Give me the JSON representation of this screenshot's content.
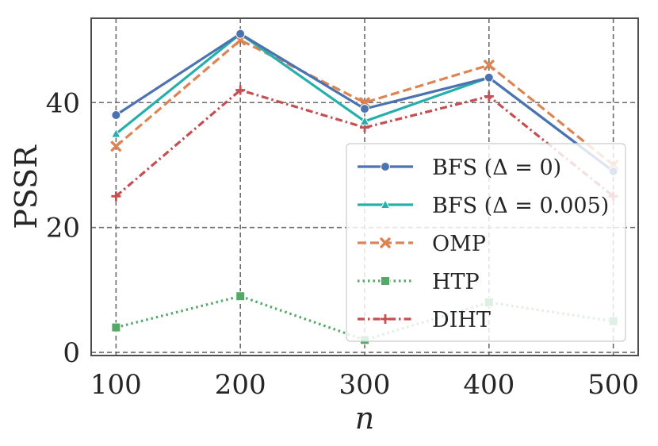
{
  "chart_data": {
    "type": "line",
    "title": "",
    "xlabel": "n",
    "ylabel": "PSSR",
    "x": [
      100,
      200,
      300,
      400,
      500
    ],
    "xticks": [
      "100",
      "200",
      "300",
      "400",
      "500"
    ],
    "yticks": [
      "0",
      "20",
      "40"
    ],
    "xlim": [
      80,
      520
    ],
    "ylim": [
      -0.5,
      53.5
    ],
    "grid": true,
    "legend_position": "center-right",
    "series": [
      {
        "name": "BFS (Δ = 0)",
        "color": "#4c72b0",
        "dash": "solid",
        "marker": "circle",
        "values": [
          38,
          51,
          39,
          44,
          29
        ]
      },
      {
        "name": "BFS (Δ = 0.005)",
        "color": "#25b0ab",
        "dash": "solid",
        "marker": "triangle",
        "values": [
          35,
          51,
          37,
          44,
          29
        ]
      },
      {
        "name": "OMP",
        "color": "#dd8452",
        "dash": "dashed",
        "marker": "x",
        "values": [
          33,
          50,
          40,
          46,
          30
        ]
      },
      {
        "name": "HTP",
        "color": "#55a868",
        "dash": "dotted",
        "marker": "square",
        "values": [
          4,
          9,
          2,
          8,
          5
        ]
      },
      {
        "name": "DIHT",
        "color": "#c44e52",
        "dash": "dashdot",
        "marker": "plus",
        "values": [
          25,
          42,
          36,
          41,
          25
        ]
      }
    ]
  }
}
